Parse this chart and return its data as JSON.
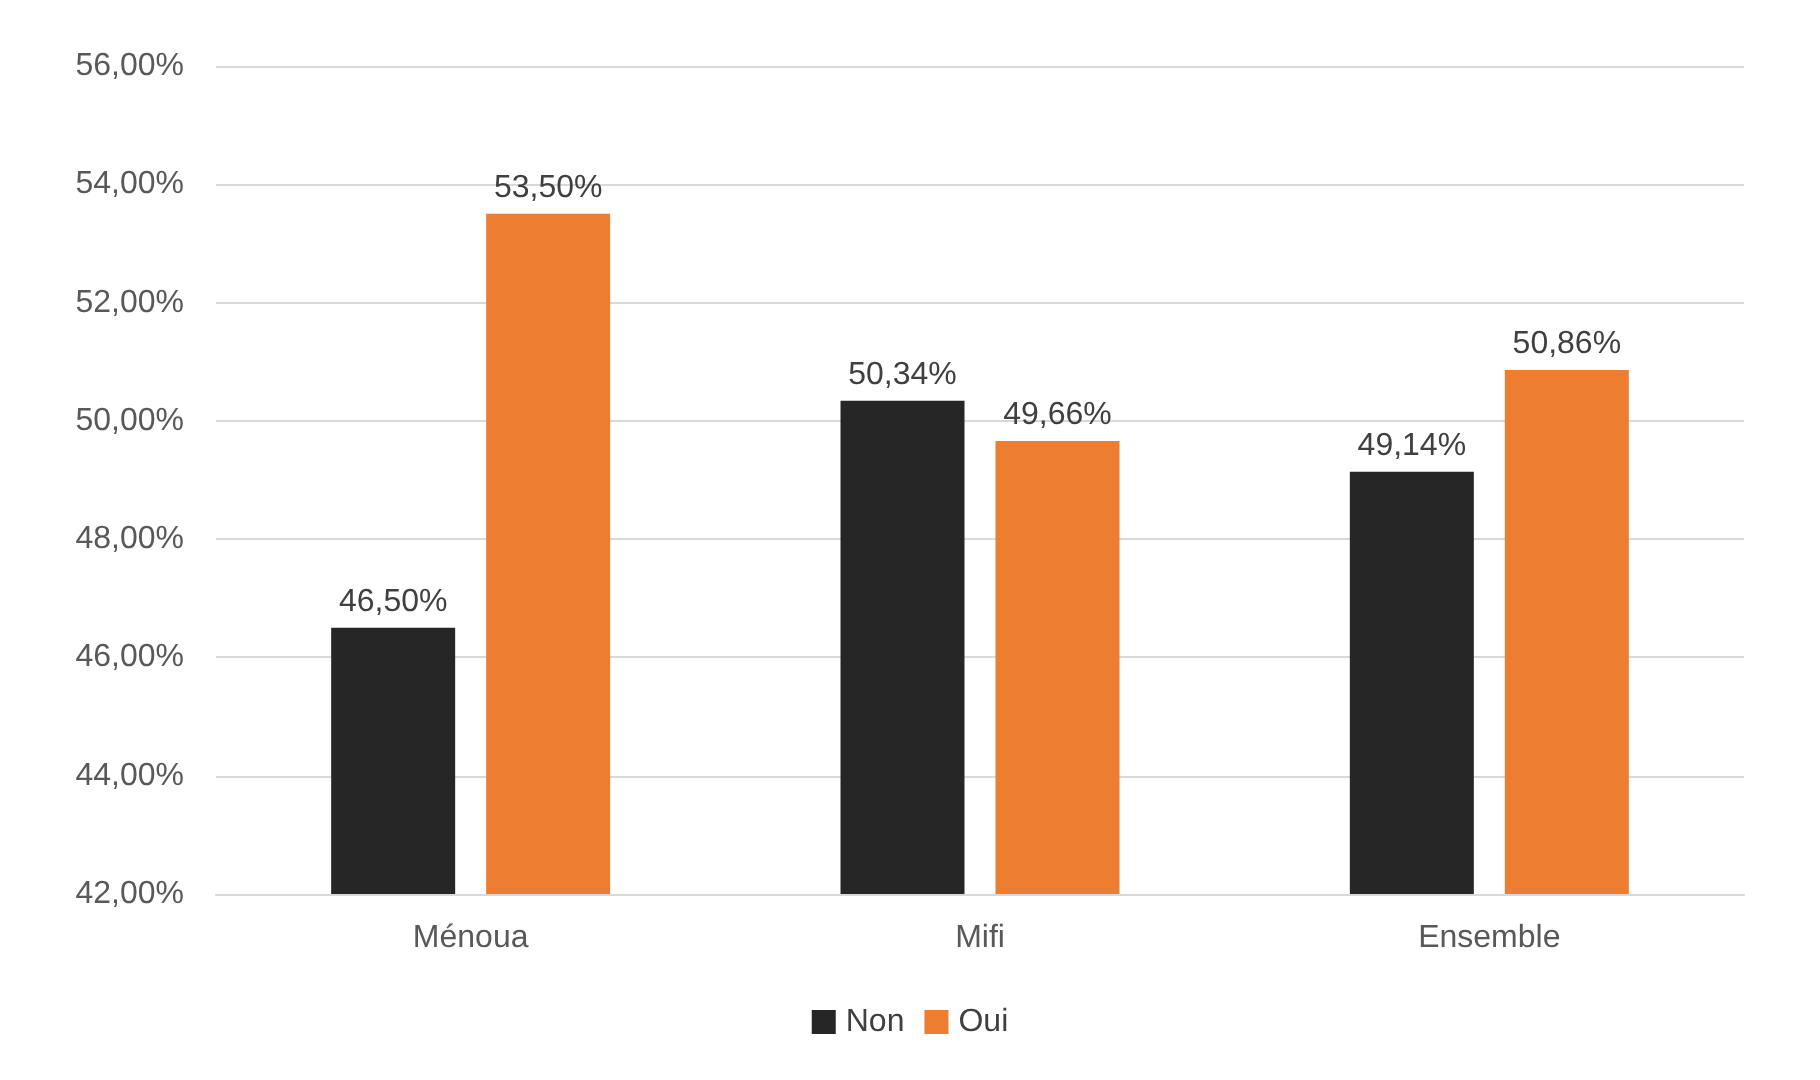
{
  "chart_data": {
    "type": "bar",
    "categories": [
      "Ménoua",
      "Mifi",
      "Ensemble"
    ],
    "series": [
      {
        "name": "Non",
        "color": "#262626",
        "values": [
          46.5,
          50.34,
          49.14
        ],
        "value_labels": [
          "46,50%",
          "50,34%",
          "49,14%"
        ]
      },
      {
        "name": "Oui",
        "color": "#ed7d31",
        "values": [
          53.5,
          49.66,
          50.86
        ],
        "value_labels": [
          "53,50%",
          "49,66%",
          "50,86%"
        ]
      }
    ],
    "ylim": [
      42,
      56
    ],
    "yticks": [
      {
        "value": 42,
        "label": "42,00%"
      },
      {
        "value": 44,
        "label": "44,00%"
      },
      {
        "value": 46,
        "label": "46,00%"
      },
      {
        "value": 48,
        "label": "48,00%"
      },
      {
        "value": 50,
        "label": "50,00%"
      },
      {
        "value": 52,
        "label": "52,00%"
      },
      {
        "value": 54,
        "label": "54,00%"
      },
      {
        "value": 56,
        "label": "56,00%"
      }
    ],
    "grid": "y",
    "legend": "bottom"
  }
}
